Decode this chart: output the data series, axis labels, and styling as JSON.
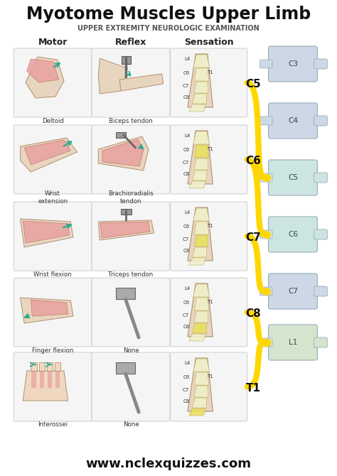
{
  "title": "Myotome Muscles Upper Limb",
  "subtitle": "UPPER EXTREMITY NEUROLOGIC EXAMINATION",
  "footer": "www.nclexquizzes.com",
  "bg_color": "#ffffff",
  "col_headers": [
    "Motor",
    "Reflex",
    "Sensation"
  ],
  "rows": [
    {
      "level": "C5",
      "motor": "Deltoid",
      "reflex": "Biceps tendon",
      "sensation_highlight": "C5"
    },
    {
      "level": "C6",
      "motor": "Wrist\nextension",
      "reflex": "Brachioradialis\ntendon",
      "sensation_highlight": "C6"
    },
    {
      "level": "C7",
      "motor": "Wrist flexion",
      "reflex": "Triceps tendon",
      "sensation_highlight": "C7"
    },
    {
      "level": "C8",
      "motor": "Finger flexion",
      "reflex": "None",
      "sensation_highlight": "C8"
    },
    {
      "level": "T1",
      "motor": "Interossei",
      "reflex": "None",
      "sensation_highlight": "T1"
    }
  ],
  "spine_labels": [
    "C3",
    "C4",
    "C5",
    "C6",
    "C7",
    "L1"
  ],
  "nerve_color": "#FFD700",
  "spine_color": "#d0dde8",
  "box_bg": "#f0f0f0",
  "highlight_pink": "#e8a0a0",
  "highlight_yellow": "#e8e060",
  "arrow_color": "#2aaa8a",
  "title_color": "#111111",
  "subtitle_color": "#555555",
  "footer_color": "#111111",
  "arm_color": "#e8d5c0",
  "arm_edge": "#b09070"
}
